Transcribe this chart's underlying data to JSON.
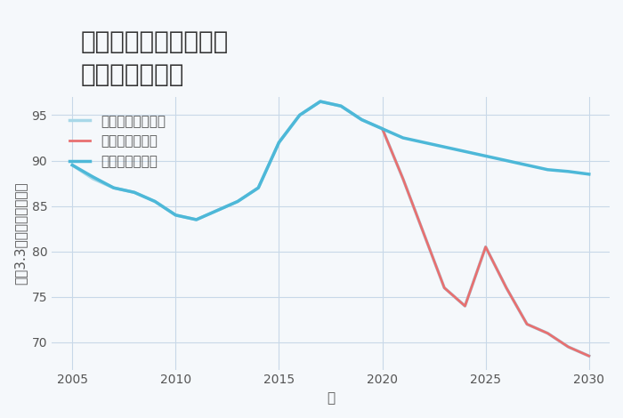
{
  "title": "兵庫県西宮市西宮浜の\n土地の価格推移",
  "xlabel": "年",
  "ylabel": "平（3.3㎡）単価（万円）",
  "background_color": "#f5f8fb",
  "plot_bg_color": "#f5f8fb",
  "grid_color": "#c8d8e8",
  "ylim": [
    67,
    97
  ],
  "yticks": [
    70,
    75,
    80,
    85,
    90,
    95
  ],
  "xlim": [
    2004,
    2031
  ],
  "xticks": [
    2005,
    2010,
    2015,
    2020,
    2025,
    2030
  ],
  "good_scenario": {
    "label": "グッドシナリオ",
    "color": "#4db8d8",
    "linewidth": 2.5,
    "x": [
      2005,
      2006,
      2007,
      2008,
      2009,
      2010,
      2011,
      2012,
      2013,
      2014,
      2015,
      2016,
      2017,
      2018,
      2019,
      2020,
      2021,
      2022,
      2023,
      2024,
      2025,
      2026,
      2027,
      2028,
      2029,
      2030
    ],
    "y": [
      89.5,
      88.2,
      87.0,
      86.5,
      85.5,
      84.0,
      83.5,
      84.5,
      85.5,
      87.0,
      92.0,
      95.0,
      96.5,
      96.0,
      94.5,
      93.5,
      92.5,
      92.0,
      91.5,
      91.0,
      90.5,
      90.0,
      89.5,
      89.0,
      88.8,
      88.5
    ]
  },
  "bad_scenario": {
    "label": "バッドシナリオ",
    "color": "#e87070",
    "linewidth": 2.0,
    "x": [
      2020,
      2021,
      2022,
      2023,
      2024,
      2025,
      2026,
      2027,
      2028,
      2029,
      2030
    ],
    "y": [
      93.5,
      88.0,
      82.0,
      76.0,
      74.0,
      80.5,
      76.0,
      72.0,
      71.0,
      69.5,
      68.5
    ]
  },
  "normal_scenario": {
    "label": "ノーマルシナリオ",
    "color": "#a8d8e8",
    "linewidth": 2.5,
    "x": [
      2005,
      2006,
      2007,
      2008,
      2009,
      2010,
      2011,
      2012,
      2013,
      2014,
      2015,
      2016,
      2017,
      2018,
      2019,
      2020,
      2021,
      2022,
      2023,
      2024,
      2025,
      2026,
      2027,
      2028,
      2029,
      2030
    ],
    "y": [
      89.5,
      88.0,
      87.0,
      86.5,
      85.5,
      84.0,
      83.5,
      84.5,
      85.5,
      87.0,
      92.0,
      95.0,
      96.5,
      96.0,
      94.5,
      93.5,
      88.0,
      82.0,
      76.0,
      74.0,
      80.5,
      76.0,
      72.0,
      71.0,
      69.5,
      68.5
    ]
  },
  "title_fontsize": 20,
  "label_fontsize": 11,
  "tick_fontsize": 10,
  "legend_fontsize": 11
}
